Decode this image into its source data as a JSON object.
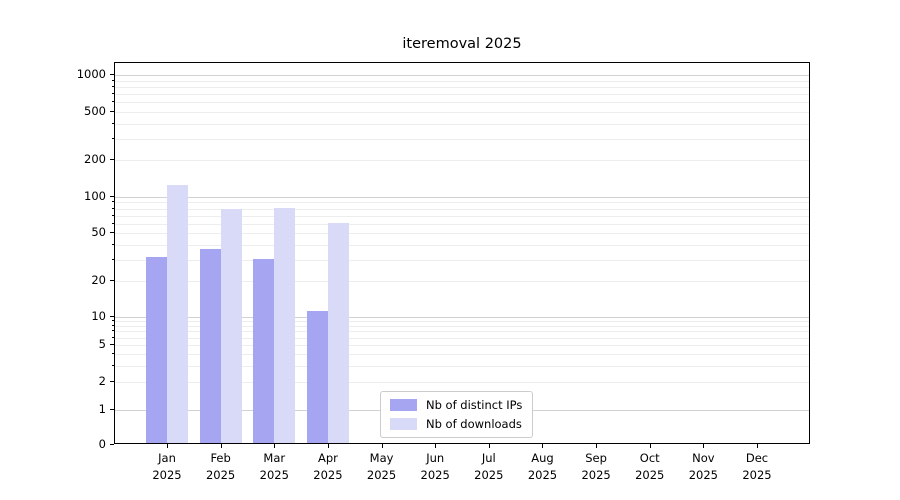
{
  "chart_data": {
    "type": "bar",
    "title": "iteremoval 2025",
    "categories": [
      "Jan",
      "Feb",
      "Mar",
      "Apr",
      "May",
      "Jun",
      "Jul",
      "Aug",
      "Sep",
      "Oct",
      "Nov",
      "Dec"
    ],
    "x_year_label": "2025",
    "series": [
      {
        "name": "Nb of distinct IPs",
        "color": "#a5a5f2",
        "values": [
          31,
          36,
          30,
          11,
          0,
          0,
          0,
          0,
          0,
          0,
          0,
          0
        ]
      },
      {
        "name": "Nb of downloads",
        "color": "#d9d9f8",
        "values": [
          123,
          78,
          80,
          60,
          0,
          0,
          0,
          0,
          0,
          0,
          0,
          0
        ]
      }
    ],
    "yscale": "symlog",
    "y_tick_labels": [
      0,
      1,
      2,
      5,
      10,
      20,
      50,
      100,
      200,
      500,
      1000
    ],
    "ylim": [
      0,
      1300
    ],
    "xlabel": "",
    "ylabel": "",
    "grid": "horizontal-major-and-minor",
    "legend_position": "lower-center",
    "colors": {
      "axis": "#000000",
      "major_grid": "#d2d2d2",
      "minor_grid": "#ededed",
      "legend_border": "#cccccc",
      "background": "#ffffff",
      "text": "#000000"
    }
  }
}
